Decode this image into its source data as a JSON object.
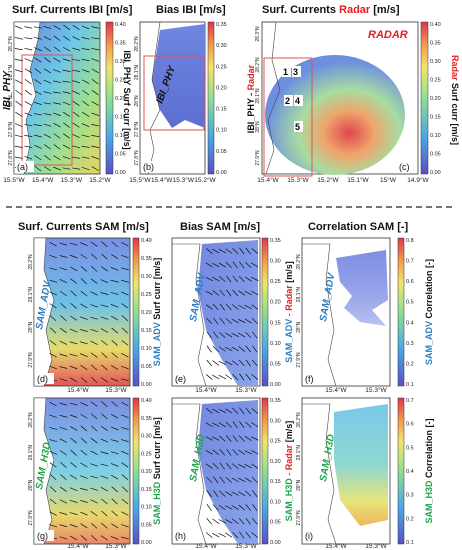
{
  "top": {
    "a": {
      "title": "Surf. Currents IBI [m/s]",
      "model": "IBI_PHY",
      "cbar_label": "IBI_PHY Surf curr [m/s]",
      "panel": "(a)"
    },
    "b": {
      "title": "Bias IBI [m/s]",
      "model": "IBI_PHY",
      "panel": "(b)"
    },
    "c": {
      "title_prefix": "Surf. Currents ",
      "title_radar": "Radar",
      "title_suffix": " [m/s]",
      "tag": "RADAR",
      "ylab_prefix": "IBI_PHY - ",
      "ylab_radar": "Radar",
      "cbar_prefix": "Radar",
      "cbar_suffix": " Surf curr [m/s]",
      "points": [
        "1",
        "3",
        "2",
        "4",
        "5"
      ],
      "panel": "(c)"
    }
  },
  "row_sam_adv": {
    "title_d": "Surf. Currents SAM [m/s]",
    "title_e": "Bias SAM [m/s]",
    "title_f": "Correlation SAM [-]",
    "model": "SAM_ADV",
    "cbar_d": "SAM_ADV Surf curr [m/s]",
    "cbar_e_prefix": "SAM_ADV - ",
    "cbar_e_radar": "Radar",
    "cbar_e_suffix": " [m/s]",
    "cbar_f_model": "SAM_ADV",
    "cbar_f_suffix": " Correlation [-]",
    "panels": [
      "(d)",
      "(e)",
      "(f)"
    ]
  },
  "row_sam_h3d": {
    "model": "SAM_H3D",
    "cbar_g": "SAM_H3D Surf curr [m/s]",
    "cbar_h_prefix": "SAM_H3D - ",
    "cbar_h_radar": "Radar",
    "cbar_h_suffix": " [m/s]",
    "cbar_i_model": "SAM_H3D",
    "cbar_i_suffix": " Correlation [-]",
    "panels": [
      "(g)",
      "(h)",
      "(i)"
    ]
  },
  "axes": {
    "top_a_x": [
      "15.5°W",
      "15.4°W",
      "15.3°W",
      "15.2°W"
    ],
    "top_b_x": [
      "15.5°W",
      "15.4°W",
      "15.3°W",
      "15.2°W"
    ],
    "top_c_x": [
      "15.4°W",
      "15.3°W",
      "15.2°W",
      "15.1°W",
      "15°W",
      "14.9°W"
    ],
    "top_a_y": [
      "28.2°N",
      "28.1°N",
      "28°N",
      "27.9°N",
      "27.8°N"
    ],
    "top_b_y": [
      "28.2°N",
      "28.1°N",
      "28°N",
      "27.9°N",
      "27.8°N"
    ],
    "top_c_y": [
      "28.3°N",
      "28.2°N",
      "28.1°N",
      "28°N",
      "27.9°N"
    ],
    "bot_x": [
      "15.4°W",
      "15.3°W"
    ],
    "bot_y": [
      "28.2°N",
      "28.1°N",
      "28°N",
      "27.9°N"
    ]
  },
  "colorbars": {
    "a": [
      "0.40",
      "0.35",
      "0.30",
      "0.25",
      "0.20",
      "0.15",
      "0.10",
      "0.05",
      "0.00"
    ],
    "b": [
      "0.35",
      "0.30",
      "0.25",
      "0.20",
      "0.15",
      "0.10",
      "0.05",
      "0.00"
    ],
    "c": [
      "0.40",
      "0.35",
      "0.30",
      "0.25",
      "0.20",
      "0.15",
      "0.10",
      "0.05",
      "0.00"
    ],
    "d": [
      "0.40",
      "0.35",
      "0.30",
      "0.25",
      "0.20",
      "0.15",
      "0.10",
      "0.05",
      "0.00"
    ],
    "e": [
      "0.35",
      "0.30",
      "0.25",
      "0.20",
      "0.15",
      "0.10",
      "0.05",
      "0.00"
    ],
    "f": [
      "0.8",
      "0.7",
      "0.6",
      "0.5",
      "0.4",
      "0.3",
      "0.2",
      "0.1"
    ],
    "g": [
      "0.40",
      "0.35",
      "0.30",
      "0.25",
      "0.20",
      "0.15",
      "0.10",
      "0.05",
      "0.00"
    ],
    "h": [
      "0.35",
      "0.30",
      "0.25",
      "0.20",
      "0.15",
      "0.10",
      "0.05",
      "0.00"
    ],
    "i": [
      "0.7",
      "0.6",
      "0.5",
      "0.4",
      "0.3",
      "0.2",
      "0.1"
    ]
  },
  "colors": {
    "radar": "#e02020",
    "adv": "#2a7fc0",
    "h3d": "#1fa44a"
  },
  "chart_data": {
    "type": "heatmap",
    "panels": [
      "(a)",
      "(b)",
      "(c)",
      "(d)",
      "(e)",
      "(f)",
      "(g)",
      "(h)",
      "(i)"
    ],
    "colorbar_ranges": {
      "surf_curr": [
        0.0,
        0.4
      ],
      "bias": [
        0.0,
        0.35
      ],
      "corr_f": [
        0.1,
        0.8
      ],
      "corr_i": [
        0.1,
        0.7
      ]
    }
  }
}
